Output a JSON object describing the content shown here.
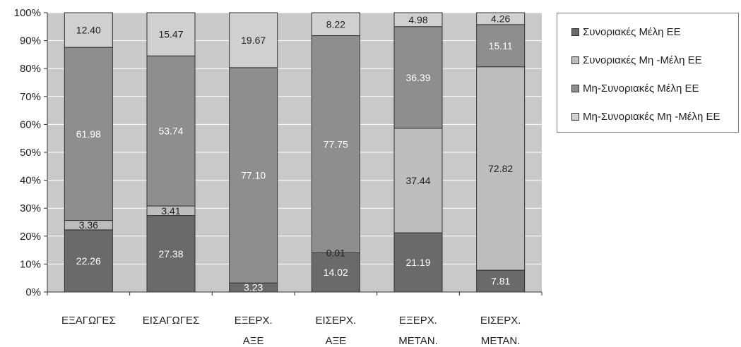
{
  "chart_data": {
    "type": "bar",
    "stacked": true,
    "percent": true,
    "categories": [
      [
        "ΕΞΑΓΩΓΕΣ"
      ],
      [
        "ΕΙΣΑΓΩΓΕΣ"
      ],
      [
        "ΕΞΕΡΧ.",
        "ΑΞΕ"
      ],
      [
        "ΕΙΣΕΡΧ.",
        "ΑΞΕ"
      ],
      [
        "ΕΞΕΡΧ.",
        "ΜΕΤΑΝ."
      ],
      [
        "ΕΙΣΕΡΧ.",
        "ΜΕΤΑΝ."
      ]
    ],
    "series": [
      {
        "name": "Συνοριακές Μέλη ΕΕ",
        "color": "#6a6a6a",
        "values": [
          22.26,
          27.38,
          3.23,
          14.02,
          21.19,
          7.81
        ],
        "labels": [
          "22.26",
          "27.38",
          "3.23",
          "14.02",
          "21.19",
          "7.81"
        ]
      },
      {
        "name": "Συνοριακές Μη -Μέλη ΕΕ",
        "color": "#bdbdbd",
        "values": [
          3.36,
          3.41,
          0.0,
          0.01,
          37.44,
          72.82
        ],
        "labels": [
          "3.36",
          "3.41",
          "",
          "0.01",
          "37.44",
          "72.82"
        ]
      },
      {
        "name": "Μη-Συνοριακές Μέλη ΕΕ",
        "color": "#8e8e8e",
        "values": [
          61.98,
          53.74,
          77.1,
          77.75,
          36.39,
          15.11
        ],
        "labels": [
          "61.98",
          "53.74",
          "77.10",
          "77.75",
          "36.39",
          "15.11"
        ]
      },
      {
        "name": "Μη-Συνοριακές Μη -Μέλη ΕΕ",
        "color": "#d0d0d0",
        "values": [
          12.4,
          15.47,
          19.67,
          8.22,
          4.98,
          4.26
        ],
        "labels": [
          "12.40",
          "15.47",
          "19.67",
          "8.22",
          "4.98",
          "4.26"
        ]
      }
    ],
    "ylim": [
      0,
      100
    ],
    "yticks": [
      "0%",
      "10%",
      "20%",
      "30%",
      "40%",
      "50%",
      "60%",
      "70%",
      "80%",
      "90%",
      "100%"
    ],
    "grid": true,
    "legend_position": "right"
  }
}
